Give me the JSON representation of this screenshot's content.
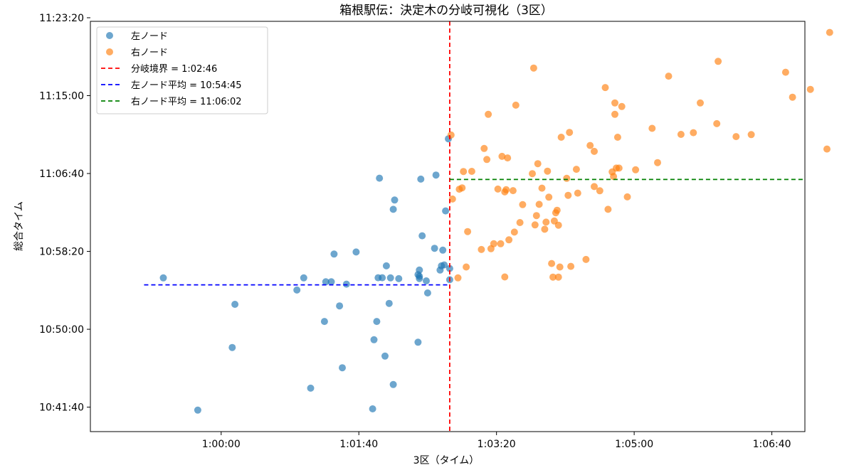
{
  "chart_data": {
    "type": "scatter",
    "title": "箱根駅伝：決定木の分岐可視化（3区）",
    "xlabel": "3区（タイム）",
    "ylabel": "総合タイム",
    "x_unit": "seconds",
    "y_unit": "seconds",
    "xlim": [
      3505,
      4024
    ],
    "ylim": [
      38343,
      40977
    ],
    "x_ticks": [
      {
        "value": 3600,
        "label": "1:00:00"
      },
      {
        "value": 3700,
        "label": "1:01:40"
      },
      {
        "value": 3800,
        "label": "1:03:20"
      },
      {
        "value": 3900,
        "label": "1:05:00"
      },
      {
        "value": 4000,
        "label": "1:06:40"
      }
    ],
    "y_ticks": [
      {
        "value": 38500,
        "label": "10:41:40"
      },
      {
        "value": 39000,
        "label": "10:50:00"
      },
      {
        "value": 39500,
        "label": "10:58:20"
      },
      {
        "value": 40000,
        "label": "11:06:40"
      },
      {
        "value": 40500,
        "label": "11:15:00"
      },
      {
        "value": 41000,
        "label": "11:23:20"
      }
    ],
    "series": [
      {
        "name": "左ノード",
        "color": "#1f77b4",
        "points": [
          [
            3583,
            38481
          ],
          [
            3558,
            39330
          ],
          [
            3608,
            38883
          ],
          [
            3610,
            39160
          ],
          [
            3655,
            39252
          ],
          [
            3660,
            39330
          ],
          [
            3665,
            38622
          ],
          [
            3675,
            39050
          ],
          [
            3676,
            39305
          ],
          [
            3680,
            39305
          ],
          [
            3682,
            39483
          ],
          [
            3686,
            39150
          ],
          [
            3688,
            38753
          ],
          [
            3691,
            39290
          ],
          [
            3698,
            39496
          ],
          [
            3710,
            38489
          ],
          [
            3711,
            38933
          ],
          [
            3713,
            39050
          ],
          [
            3714,
            39331
          ],
          [
            3715,
            39970
          ],
          [
            3717,
            39331
          ],
          [
            3719,
            38828
          ],
          [
            3720,
            39407
          ],
          [
            3722,
            39166
          ],
          [
            3723,
            39330
          ],
          [
            3725,
            38645
          ],
          [
            3725,
            39770
          ],
          [
            3726,
            39830
          ],
          [
            3729,
            39325
          ],
          [
            3743,
            39351
          ],
          [
            3743,
            38917
          ],
          [
            3744,
            39326
          ],
          [
            3744,
            39380
          ],
          [
            3744,
            39340
          ],
          [
            3745,
            39964
          ],
          [
            3746,
            39600
          ],
          [
            3749,
            39311
          ],
          [
            3750,
            39233
          ],
          [
            3755,
            39520
          ],
          [
            3756,
            39990
          ],
          [
            3759,
            39380
          ],
          [
            3760,
            39407
          ],
          [
            3761,
            39508
          ],
          [
            3762,
            39413
          ],
          [
            3763,
            39760
          ],
          [
            3765,
            40223
          ],
          [
            3766,
            39318
          ],
          [
            3766,
            39390
          ]
        ]
      },
      {
        "name": "右ノード",
        "color": "#ff7f0e",
        "points": [
          [
            3767,
            40247
          ],
          [
            3768,
            39836
          ],
          [
            3772,
            39330
          ],
          [
            3773,
            39899
          ],
          [
            3775,
            39908
          ],
          [
            3776,
            40013
          ],
          [
            3778,
            39400
          ],
          [
            3779,
            39627
          ],
          [
            3782,
            40014
          ],
          [
            3789,
            39512
          ],
          [
            3791,
            40161
          ],
          [
            3793,
            40090
          ],
          [
            3794,
            40380
          ],
          [
            3796,
            39517
          ],
          [
            3798,
            39549
          ],
          [
            3801,
            39900
          ],
          [
            3803,
            39549
          ],
          [
            3804,
            40110
          ],
          [
            3806,
            39882
          ],
          [
            3806,
            39336
          ],
          [
            3807,
            39896
          ],
          [
            3808,
            40100
          ],
          [
            3809,
            39574
          ],
          [
            3812,
            39890
          ],
          [
            3813,
            39624
          ],
          [
            3814,
            40439
          ],
          [
            3817,
            39685
          ],
          [
            3819,
            39800
          ],
          [
            3826,
            39999
          ],
          [
            3827,
            40677
          ],
          [
            3828,
            39670
          ],
          [
            3829,
            39730
          ],
          [
            3830,
            40063
          ],
          [
            3831,
            39802
          ],
          [
            3833,
            39906
          ],
          [
            3835,
            39642
          ],
          [
            3836,
            39688
          ],
          [
            3837,
            40015
          ],
          [
            3838,
            39848
          ],
          [
            3840,
            39422
          ],
          [
            3841,
            39335
          ],
          [
            3842,
            39695
          ],
          [
            3843,
            39748
          ],
          [
            3844,
            39764
          ],
          [
            3845,
            39335
          ],
          [
            3845,
            39668
          ],
          [
            3846,
            39400
          ],
          [
            3847,
            40233
          ],
          [
            3851,
            39969
          ],
          [
            3852,
            39860
          ],
          [
            3853,
            40264
          ],
          [
            3854,
            39404
          ],
          [
            3858,
            40027
          ],
          [
            3859,
            39874
          ],
          [
            3865,
            39448
          ],
          [
            3868,
            40180
          ],
          [
            3871,
            40142
          ],
          [
            3871,
            39916
          ],
          [
            3875,
            39889
          ],
          [
            3879,
            40552
          ],
          [
            3881,
            39770
          ],
          [
            3884,
            40010
          ],
          [
            3885,
            39981
          ],
          [
            3886,
            40453
          ],
          [
            3886,
            40380
          ],
          [
            3887,
            40035
          ],
          [
            3888,
            40233
          ],
          [
            3889,
            40035
          ],
          [
            3891,
            40430
          ],
          [
            3895,
            39850
          ],
          [
            3901,
            40024
          ],
          [
            3913,
            40290
          ],
          [
            3917,
            40070
          ],
          [
            3925,
            40625
          ],
          [
            3934,
            40251
          ],
          [
            3948,
            40453
          ],
          [
            3943,
            40262
          ],
          [
            3960,
            40320
          ],
          [
            3961,
            40720
          ],
          [
            3974,
            40237
          ],
          [
            3985,
            40250
          ],
          [
            4010,
            40650
          ],
          [
            4015,
            40490
          ],
          [
            4028,
            40540
          ],
          [
            4040,
            40157
          ],
          [
            4042,
            40906
          ]
        ]
      }
    ],
    "lines": [
      {
        "name": "分岐境界 = 1:02:46",
        "orientation": "vertical",
        "value": 3766,
        "color": "#ff0000"
      },
      {
        "name": "左ノード平均 = 10:54:45",
        "orientation": "horizontal",
        "value": 39285,
        "x_range": [
          3544,
          3766
        ],
        "color": "#0000ff"
      },
      {
        "name": "右ノード平均 = 11:06:02",
        "orientation": "horizontal",
        "value": 39962,
        "x_range": [
          3766,
          4024
        ],
        "color": "#008000"
      }
    ],
    "legend": {
      "position": "top-left",
      "entries": [
        {
          "label": "左ノード",
          "kind": "marker",
          "color": "#1f77b4"
        },
        {
          "label": "右ノード",
          "kind": "marker",
          "color": "#ff7f0e"
        },
        {
          "label": "分岐境界 = 1:02:46",
          "kind": "dashed",
          "color": "#ff0000"
        },
        {
          "label": "左ノード平均 = 10:54:45",
          "kind": "dashed",
          "color": "#0000ff"
        },
        {
          "label": "右ノード平均 = 11:06:02",
          "kind": "dashed",
          "color": "#008000"
        }
      ]
    }
  }
}
